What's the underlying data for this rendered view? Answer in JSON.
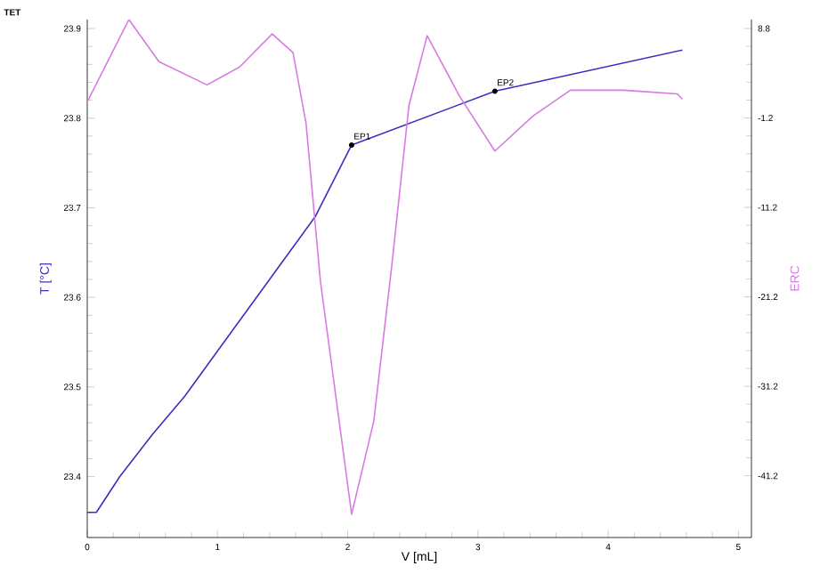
{
  "chart_data": {
    "type": "line",
    "title": "TET",
    "xlabel": "V [mL]",
    "ylabel": "T [°C]",
    "y2label": "ERC",
    "xlim": [
      0,
      5.1
    ],
    "xticks": [
      0,
      1,
      2,
      3,
      4,
      5
    ],
    "ylim": [
      23.332,
      23.91
    ],
    "yticks": [
      23.4,
      23.5,
      23.6,
      23.7,
      23.8,
      23.9
    ],
    "y2lim": [
      -48.1,
      9.8
    ],
    "y2ticks": [
      -41.2,
      -31.2,
      -21.2,
      -11.2,
      -1.2,
      8.8
    ],
    "marker": "none",
    "line_style": "solid",
    "grid": false,
    "series": [
      {
        "name": null,
        "color": "#3b2fc0",
        "x": [
          0,
          0.07,
          0.25,
          0.5,
          0.75,
          1.0,
          1.4,
          1.75,
          2.03,
          3.13,
          4.57
        ],
        "values": [
          23.36,
          23.36,
          23.4,
          23.447,
          23.49,
          23.54,
          23.62,
          23.69,
          23.77,
          23.83,
          23.876
        ]
      },
      {
        "name": null,
        "color": "#d77be0",
        "axis": "y2",
        "x": [
          0,
          0.32,
          0.55,
          0.92,
          1.17,
          1.42,
          1.58,
          1.68,
          1.79,
          2.03,
          2.2,
          2.34,
          2.47,
          2.61,
          2.86,
          3.13,
          3.42,
          3.71,
          4.12,
          4.53,
          4.57
        ],
        "values": [
          0.6,
          9.8,
          5.1,
          2.5,
          4.5,
          8.2,
          6.1,
          -1.8,
          -19.4,
          -45.5,
          -35.1,
          -17.5,
          0.2,
          8.0,
          1.2,
          -4.9,
          -1.0,
          1.9,
          1.9,
          1.5,
          0.9
        ]
      }
    ],
    "annotations": [
      {
        "text": "EP1",
        "x": 2.03,
        "y": 23.77
      },
      {
        "text": "EP2",
        "x": 3.13,
        "y": 23.83
      }
    ]
  }
}
